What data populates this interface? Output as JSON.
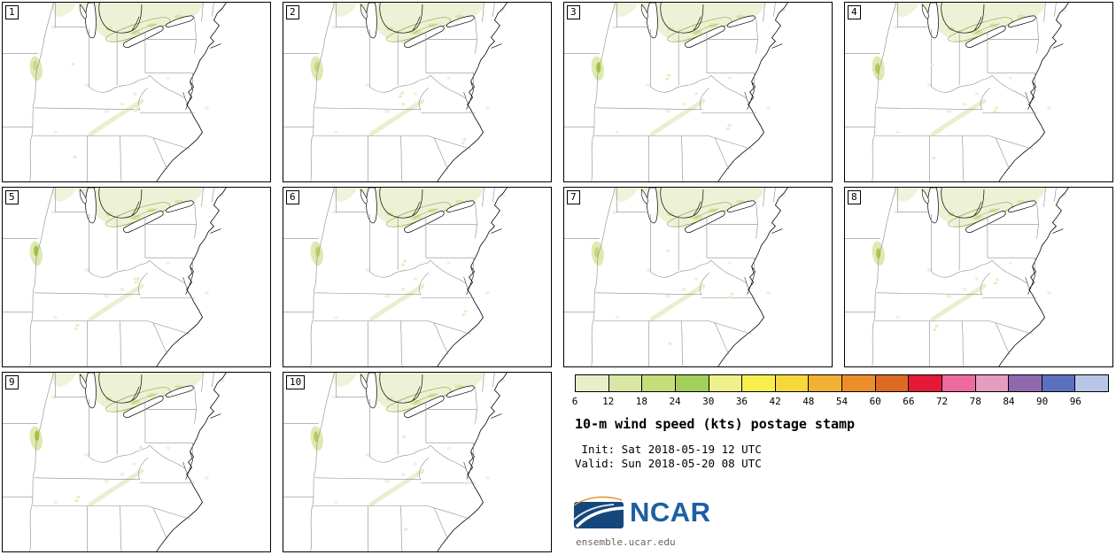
{
  "panels": {
    "members": [
      {
        "label": "1"
      },
      {
        "label": "2"
      },
      {
        "label": "3"
      },
      {
        "label": "4"
      },
      {
        "label": "5"
      },
      {
        "label": "6"
      },
      {
        "label": "7"
      },
      {
        "label": "8"
      },
      {
        "label": "9"
      },
      {
        "label": "10"
      }
    ]
  },
  "legend": {
    "title": "10-m wind speed (kts) postage stamp",
    "init_line": " Init: Sat 2018-05-19 12 UTC",
    "valid_line": "Valid: Sun 2018-05-20 08 UTC",
    "colorbar": {
      "ticks": [
        "6",
        "12",
        "18",
        "24",
        "30",
        "36",
        "42",
        "48",
        "54",
        "60",
        "66",
        "72",
        "78",
        "84",
        "90",
        "96"
      ],
      "colors": [
        "#e6eecb",
        "#d8e7a4",
        "#c6dd78",
        "#a3cf5a",
        "#eef08c",
        "#f6ef4e",
        "#f6d83b",
        "#f2b133",
        "#ec8f2a",
        "#dd6b21",
        "#e51937",
        "#ec6a9e",
        "#e49cc0",
        "#9168ae",
        "#5d70c0",
        "#b7c6e8"
      ]
    },
    "logo": {
      "text": "NCAR",
      "site": "ensemble.ucar.edu"
    }
  }
}
